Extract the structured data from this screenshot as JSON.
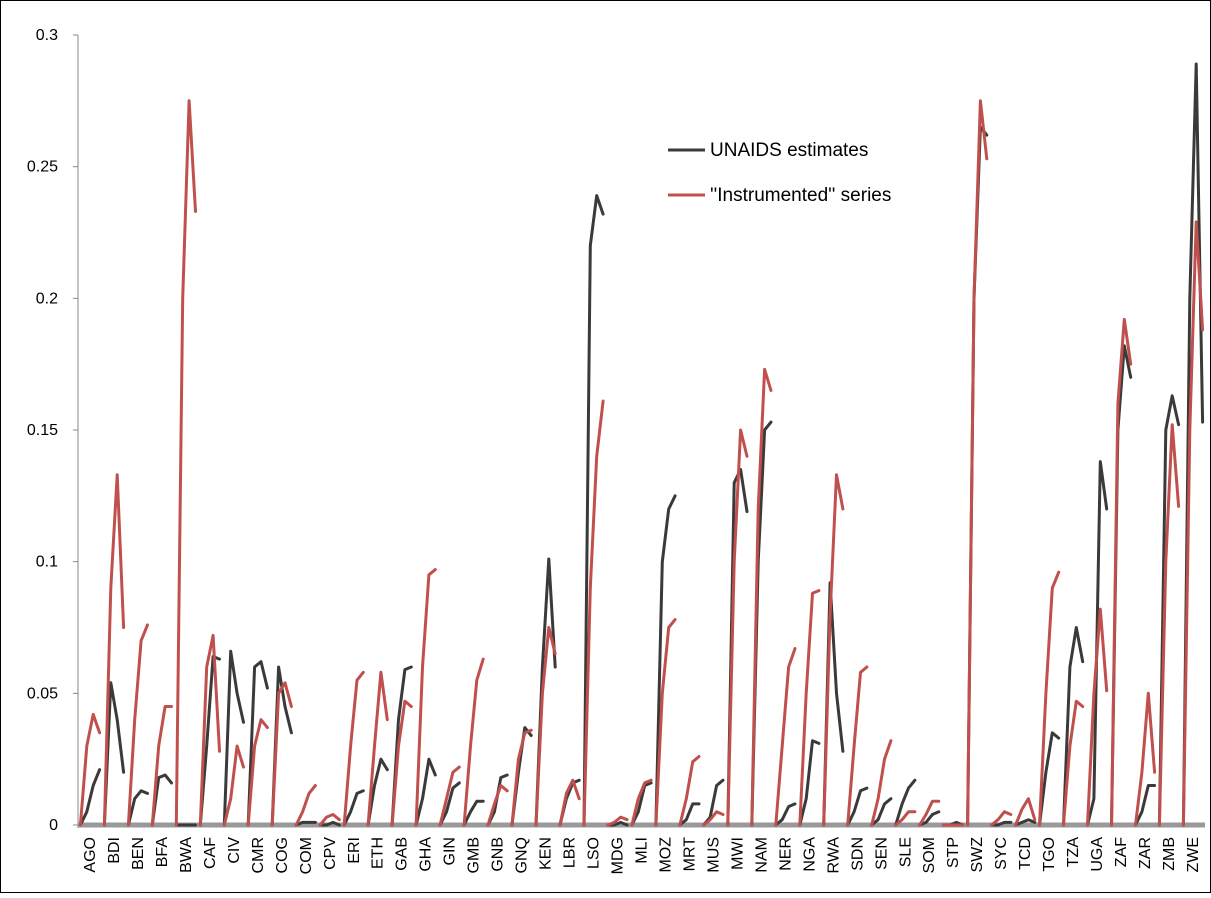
{
  "chart_data": {
    "type": "line",
    "categories": [
      "AGO",
      "BDI",
      "BEN",
      "BFA",
      "BWA",
      "CAF",
      "CIV",
      "CMR",
      "COG",
      "COM",
      "CPV",
      "ERI",
      "ETH",
      "GAB",
      "GHA",
      "GIN",
      "GMB",
      "GNB",
      "GNQ",
      "KEN",
      "LBR",
      "LSO",
      "MDG",
      "MLI",
      "MOZ",
      "MRT",
      "MUS",
      "MWI",
      "NAM",
      "NER",
      "NGA",
      "RWA",
      "SDN",
      "SEN",
      "SLE",
      "SOM",
      "STP",
      "SWZ",
      "SYC",
      "TCD",
      "TGO",
      "TZA",
      "UGA",
      "ZAF",
      "ZAR",
      "ZMB",
      "ZWE"
    ],
    "series": [
      {
        "name": "UNAIDS estimates",
        "color": "#3a3a3a",
        "values": [
          [
            0,
            0.005,
            0.015,
            0.021
          ],
          [
            0,
            0.054,
            0.04,
            0.02
          ],
          [
            0,
            0.01,
            0.013,
            0.012
          ],
          [
            0,
            0.018,
            0.019,
            0.016
          ],
          [
            0,
            0,
            0,
            0
          ],
          [
            0,
            0.03,
            0.064,
            0.063
          ],
          [
            0,
            0.066,
            0.05,
            0.039
          ],
          [
            0,
            0.06,
            0.062,
            0.052
          ],
          [
            0,
            0.06,
            0.045,
            0.035
          ],
          [
            0,
            0.001,
            0.001,
            0.001
          ],
          [
            0,
            0,
            0.001,
            0
          ],
          [
            0,
            0.005,
            0.012,
            0.013
          ],
          [
            0,
            0.015,
            0.025,
            0.021
          ],
          [
            0,
            0.04,
            0.059,
            0.06
          ],
          [
            0,
            0.01,
            0.025,
            0.019
          ],
          [
            0,
            0.005,
            0.014,
            0.016
          ],
          [
            0,
            0.005,
            0.009,
            0.009
          ],
          [
            0,
            0.005,
            0.018,
            0.019
          ],
          [
            0,
            0.02,
            0.037,
            0.034
          ],
          [
            0,
            0.06,
            0.101,
            0.06
          ],
          [
            0,
            0.01,
            0.016,
            0.017
          ],
          [
            0,
            0.22,
            0.239,
            0.232
          ],
          [
            0,
            0,
            0.001,
            0
          ],
          [
            0,
            0.005,
            0.015,
            0.016
          ],
          [
            0,
            0.1,
            0.12,
            0.125
          ],
          [
            0,
            0.002,
            0.008,
            0.008
          ],
          [
            0,
            0.003,
            0.015,
            0.017
          ],
          [
            0,
            0.13,
            0.135,
            0.119
          ],
          [
            0,
            0.1,
            0.15,
            0.153
          ],
          [
            0,
            0.002,
            0.007,
            0.008
          ],
          [
            0,
            0.01,
            0.032,
            0.031
          ],
          [
            0,
            0.092,
            0.05,
            0.028
          ],
          [
            0,
            0.005,
            0.013,
            0.014
          ],
          [
            0,
            0.002,
            0.008,
            0.01
          ],
          [
            0,
            0.008,
            0.014,
            0.017
          ],
          [
            0,
            0.001,
            0.004,
            0.005
          ],
          [
            0,
            0,
            0.001,
            0
          ],
          [
            0,
            0.2,
            0.265,
            0.262
          ],
          [
            0,
            0,
            0.001,
            0.001
          ],
          [
            0,
            0.001,
            0.002,
            0.001
          ],
          [
            0,
            0.02,
            0.035,
            0.033
          ],
          [
            0,
            0.06,
            0.075,
            0.062
          ],
          [
            0,
            0.01,
            0.138,
            0.12
          ],
          [
            0,
            0.15,
            0.182,
            0.17
          ],
          [
            0,
            0.005,
            0.015,
            0.015
          ],
          [
            0,
            0.15,
            0.163,
            0.152
          ],
          [
            0,
            0.2,
            0.289,
            0.153
          ]
        ]
      },
      {
        "name": "''Instrumented''  series",
        "color": "#c0504d",
        "values": [
          [
            0,
            0.03,
            0.042,
            0.035
          ],
          [
            0,
            0.09,
            0.133,
            0.075
          ],
          [
            0,
            0.04,
            0.07,
            0.076
          ],
          [
            0,
            0.03,
            0.045,
            0.045
          ],
          [
            0,
            0.2,
            0.275,
            0.233
          ],
          [
            0,
            0.06,
            0.072,
            0.028
          ],
          [
            0,
            0.01,
            0.03,
            0.022
          ],
          [
            0,
            0.03,
            0.04,
            0.037
          ],
          [
            0,
            0.05,
            0.054,
            0.045
          ],
          [
            0,
            0.005,
            0.012,
            0.015
          ],
          [
            0,
            0.003,
            0.004,
            0.002
          ],
          [
            0,
            0.03,
            0.055,
            0.058
          ],
          [
            0,
            0.03,
            0.058,
            0.04
          ],
          [
            0,
            0.03,
            0.047,
            0.045
          ],
          [
            0,
            0.06,
            0.095,
            0.097
          ],
          [
            0,
            0.01,
            0.02,
            0.022
          ],
          [
            0,
            0.03,
            0.055,
            0.063
          ],
          [
            0,
            0.008,
            0.015,
            0.013
          ],
          [
            0,
            0.025,
            0.035,
            0.036
          ],
          [
            0,
            0.05,
            0.075,
            0.065
          ],
          [
            0,
            0.012,
            0.017,
            0.01
          ],
          [
            0,
            0.09,
            0.14,
            0.161
          ],
          [
            0,
            0.001,
            0.003,
            0.002
          ],
          [
            0,
            0.01,
            0.016,
            0.017
          ],
          [
            0,
            0.05,
            0.075,
            0.078
          ],
          [
            0,
            0.01,
            0.024,
            0.026
          ],
          [
            0,
            0.002,
            0.005,
            0.004
          ],
          [
            0,
            0.1,
            0.15,
            0.14
          ],
          [
            0,
            0.12,
            0.173,
            0.165
          ],
          [
            0,
            0.03,
            0.06,
            0.067
          ],
          [
            0,
            0.05,
            0.088,
            0.089
          ],
          [
            0,
            0.08,
            0.133,
            0.12
          ],
          [
            0,
            0.03,
            0.058,
            0.06
          ],
          [
            0,
            0.01,
            0.025,
            0.032
          ],
          [
            0,
            0.002,
            0.005,
            0.005
          ],
          [
            0,
            0.004,
            0.009,
            0.009
          ],
          [
            0,
            0,
            0,
            0
          ],
          [
            0,
            0.2,
            0.275,
            0.253
          ],
          [
            0,
            0.002,
            0.005,
            0.004
          ],
          [
            0,
            0.006,
            0.01,
            0.002
          ],
          [
            0,
            0.05,
            0.09,
            0.096
          ],
          [
            0,
            0.03,
            0.047,
            0.045
          ],
          [
            0,
            0.05,
            0.082,
            0.051
          ],
          [
            0,
            0.16,
            0.192,
            0.175
          ],
          [
            0,
            0.02,
            0.05,
            0.02
          ],
          [
            0,
            0.1,
            0.152,
            0.121
          ],
          [
            0,
            0.15,
            0.229,
            0.188
          ]
        ]
      }
    ],
    "ylim": [
      0,
      0.3
    ],
    "yticks": [
      0,
      0.05,
      0.1,
      0.15,
      0.2,
      0.25,
      0.3
    ],
    "grid": false,
    "legend": "top-right"
  }
}
